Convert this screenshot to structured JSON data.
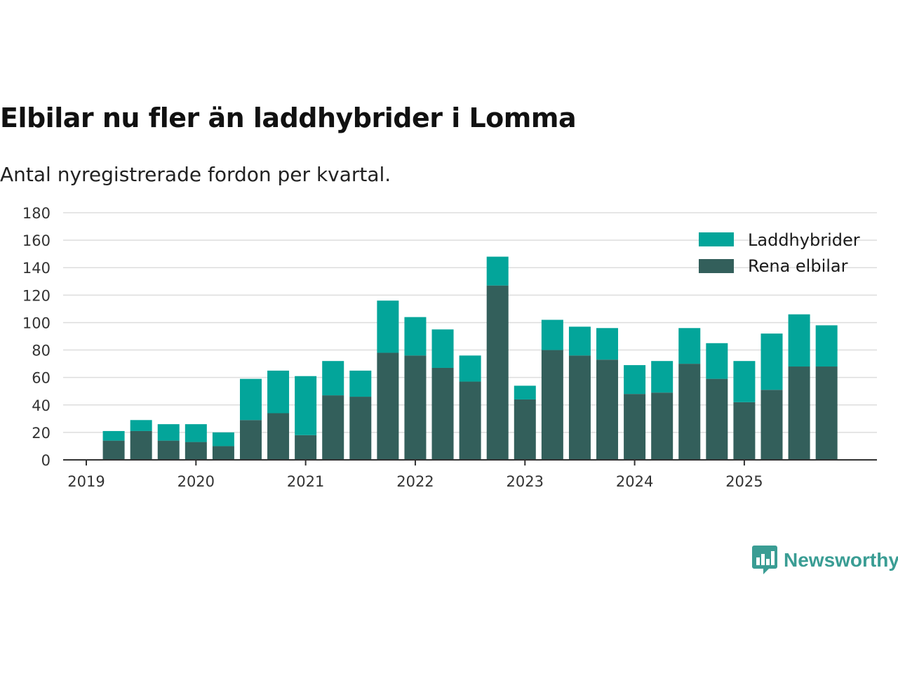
{
  "title": "Elbilar nu fler än laddhybrider i Lomma",
  "subtitle": "Antal nyregistrerade fordon per kvartal.",
  "brand": {
    "name": "Newsworthy",
    "color": "#3a9d94",
    "icon": "newsworthy-logo-icon"
  },
  "colors": {
    "laddhybrider": "#03a59a",
    "rena_elbilar": "#335f5b",
    "grid": "#dddddd",
    "axis": "#333333"
  },
  "chart_data": {
    "type": "bar",
    "stacked": true,
    "title": "Elbilar nu fler än laddhybrider i Lomma",
    "subtitle": "Antal nyregistrerade fordon per kvartal.",
    "xlabel": "",
    "ylabel": "",
    "ylim": [
      0,
      180
    ],
    "yticks": [
      0,
      20,
      40,
      60,
      80,
      100,
      120,
      140,
      160,
      180
    ],
    "grid": true,
    "legend_position": "top-right",
    "x_tick_labels": [
      "2019",
      "2020",
      "2021",
      "2022",
      "2023",
      "2024",
      "2025"
    ],
    "categories": [
      "2019 Q2",
      "2019 Q3",
      "2019 Q4",
      "2020 Q1",
      "2020 Q2",
      "2020 Q3",
      "2020 Q4",
      "2021 Q1",
      "2021 Q2",
      "2021 Q3",
      "2021 Q4",
      "2022 Q1",
      "2022 Q2",
      "2022 Q3",
      "2022 Q4",
      "2023 Q1",
      "2023 Q2",
      "2023 Q3",
      "2023 Q4",
      "2024 Q1",
      "2024 Q2",
      "2024 Q3",
      "2024 Q4",
      "2025 Q1",
      "2025 Q2",
      "2025 Q3",
      "2025 Q4"
    ],
    "series": [
      {
        "name": "Rena elbilar",
        "values": [
          14,
          21,
          14,
          13,
          10,
          29,
          34,
          18,
          47,
          46,
          78,
          76,
          67,
          57,
          127,
          44,
          80,
          76,
          73,
          48,
          49,
          70,
          59,
          42,
          51,
          68,
          68
        ]
      },
      {
        "name": "Laddhybrider",
        "values": [
          7,
          8,
          12,
          13,
          10,
          30,
          31,
          43,
          25,
          19,
          38,
          28,
          28,
          19,
          21,
          10,
          22,
          21,
          23,
          21,
          23,
          26,
          26,
          30,
          41,
          38,
          30
        ]
      }
    ],
    "legend": [
      "Laddhybrider",
      "Rena elbilar"
    ]
  }
}
